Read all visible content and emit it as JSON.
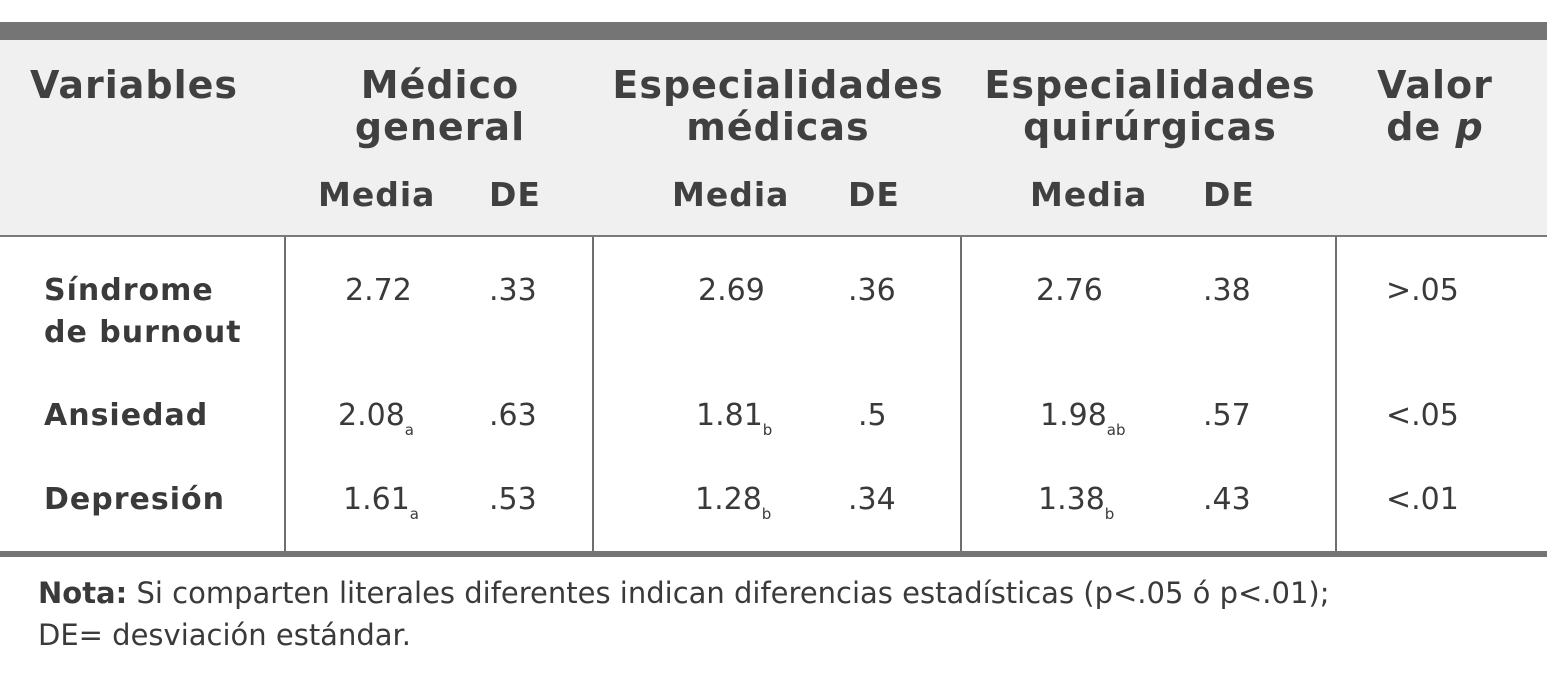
{
  "headers": {
    "variables": "Variables",
    "medico_general": [
      "Médico",
      "general"
    ],
    "especialidades_medicas": [
      "Especialidades",
      "médicas"
    ],
    "especialidades_quirurgicas": [
      "Especialidades",
      "quirúrgicas"
    ],
    "valor_p": [
      "Valor",
      "de ",
      "p"
    ]
  },
  "subheaders": {
    "mg_media": "Media",
    "mg_de": "DE",
    "em_media": "Media",
    "em_de": "DE",
    "eq_media": "Media",
    "eq_de": "DE"
  },
  "rows": [
    {
      "label": [
        "Síndrome",
        "de burnout"
      ],
      "mg_media": "2.72",
      "mg_media_sub": "",
      "mg_de": ".33",
      "em_media": "2.69",
      "em_media_sub": "",
      "em_de": ".36",
      "eq_media": "2.76",
      "eq_media_sub": "",
      "eq_de": ".38",
      "p": ">.05"
    },
    {
      "label": [
        "Ansiedad"
      ],
      "mg_media": "2.08",
      "mg_media_sub": "a",
      "mg_de": ".63",
      "em_media": "1.81",
      "em_media_sub": "b",
      "em_de": ".5",
      "eq_media": "1.98",
      "eq_media_sub": "ab",
      "eq_de": ".57",
      "p": "<.05"
    },
    {
      "label": [
        "Depresión"
      ],
      "mg_media": "1.61",
      "mg_media_sub": "a",
      "mg_de": ".53",
      "em_media": "1.28",
      "em_media_sub": "b",
      "em_de": ".34",
      "eq_media": "1.38",
      "eq_media_sub": "b",
      "eq_de": ".43",
      "p": "<.01"
    }
  ],
  "note": {
    "label": "Nota:",
    "line1": " Si comparten literales diferentes indican diferencias estadísticas (p<.05 ó p<.01);",
    "line2": "DE= desviación estándar."
  },
  "colors": {
    "rule": "#757575",
    "header_bg": "#f0f0f0",
    "text": "#3a3a3a"
  }
}
